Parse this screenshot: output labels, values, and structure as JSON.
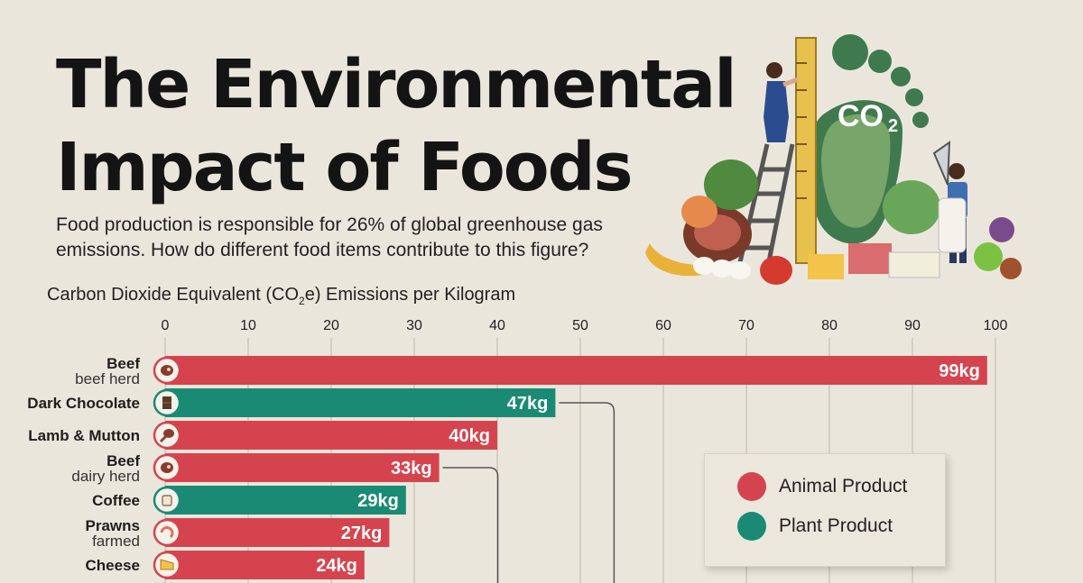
{
  "header": {
    "title_line1": "The Environmental",
    "title_line2": "Impact of Foods",
    "subtitle": "Food production is responsible for 26% of global greenhouse gas emissions. How do different food items contribute to this figure?"
  },
  "illustration": {
    "badge_text": "CO",
    "badge_sub": "2"
  },
  "axis_title": {
    "main": "Carbon Dioxide Equivalent (CO",
    "sub": "2",
    "tail": "e) Emissions per Kilogram"
  },
  "legend": {
    "animal_label": "Animal Product",
    "plant_label": "Plant Product"
  },
  "colors": {
    "animal": "#d5444e",
    "plant": "#1a8a75",
    "background": "#ebe6dc",
    "gridline": "#bdb6aa"
  },
  "chart_data": {
    "type": "bar",
    "orientation": "horizontal",
    "title": "The Environmental Impact of Foods",
    "xlabel": "Carbon Dioxide Equivalent (CO2e) Emissions per Kilogram",
    "xlim": [
      0,
      100
    ],
    "xticks": [
      0,
      10,
      20,
      30,
      40,
      50,
      60,
      70,
      80,
      90,
      100
    ],
    "grid": true,
    "legend_position": "right",
    "items": [
      {
        "name": "Beef",
        "detail": "beef herd",
        "value": 99,
        "label": "99kg",
        "category": "animal",
        "icon": "steak-icon"
      },
      {
        "name": "Dark Chocolate",
        "detail": "",
        "value": 47,
        "label": "47kg",
        "category": "plant",
        "icon": "chocolate-icon"
      },
      {
        "name": "Lamb & Mutton",
        "detail": "",
        "value": 40,
        "label": "40kg",
        "category": "animal",
        "icon": "drumstick-icon"
      },
      {
        "name": "Beef",
        "detail": "dairy herd",
        "value": 33,
        "label": "33kg",
        "category": "animal",
        "icon": "steak-icon"
      },
      {
        "name": "Coffee",
        "detail": "",
        "value": 29,
        "label": "29kg",
        "category": "plant",
        "icon": "coffee-cup-icon"
      },
      {
        "name": "Prawns",
        "detail": "farmed",
        "value": 27,
        "label": "27kg",
        "category": "animal",
        "icon": "prawn-icon"
      },
      {
        "name": "Cheese",
        "detail": "",
        "value": 24,
        "label": "24kg",
        "category": "animal",
        "icon": "cheese-icon"
      }
    ]
  }
}
